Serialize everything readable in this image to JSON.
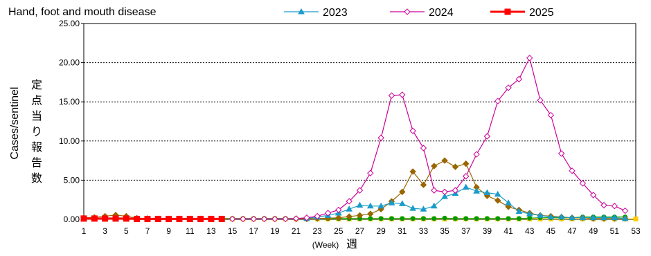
{
  "chart_data": {
    "type": "line",
    "title": "Hand, foot and mouth disease",
    "ylabel": "Cases/sentinel",
    "ylabel_ja": "定点当り報告数",
    "xlabel_unit": "(Week)",
    "xlabel_ja": "週",
    "ylim": [
      0,
      25
    ],
    "yticks": [
      "0.00",
      "5.00",
      "10.00",
      "15.00",
      "20.00",
      "25.00"
    ],
    "xlim": [
      1,
      53
    ],
    "xticks": [
      1,
      3,
      5,
      7,
      9,
      11,
      13,
      15,
      17,
      19,
      21,
      23,
      25,
      27,
      29,
      31,
      33,
      35,
      37,
      39,
      41,
      43,
      45,
      47,
      49,
      51,
      53
    ],
    "grid": "horizontal-dotted",
    "legend_position": "top",
    "series": [
      {
        "name": "",
        "color": "#ffcc00",
        "marker": "square",
        "in_legend": false,
        "x": [
          1,
          2,
          3,
          4,
          5,
          6,
          7,
          8,
          9,
          10,
          11,
          12,
          13,
          14,
          15,
          16,
          17,
          18,
          19,
          20,
          21,
          22,
          23,
          24,
          25,
          26,
          27,
          28,
          29,
          30,
          31,
          32,
          33,
          34,
          35,
          36,
          37,
          38,
          39,
          40,
          41,
          42,
          43,
          44,
          45,
          46,
          47,
          48,
          49,
          50,
          51,
          52,
          53
        ],
        "y": [
          0.05,
          0.05,
          0.05,
          0.05,
          0.05,
          0.05,
          0.05,
          0.05,
          0.05,
          0.05,
          0.05,
          0.05,
          0.05,
          0.05,
          0.05,
          0.05,
          0.05,
          0.05,
          0.05,
          0.05,
          0.05,
          0.05,
          0.05,
          0.05,
          0.05,
          0.05,
          0.05,
          0.05,
          0.05,
          0.05,
          0.05,
          0.05,
          0.05,
          0.05,
          0.05,
          0.05,
          0.05,
          0.05,
          0.05,
          0.05,
          0.05,
          0.05,
          0.05,
          0.05,
          0.05,
          0.05,
          0.05,
          0.05,
          0.05,
          0.05,
          0.05,
          0.05,
          0.05
        ]
      },
      {
        "name": "",
        "color": "#009900",
        "marker": "circle",
        "in_legend": false,
        "x": [
          1,
          2,
          3,
          4,
          5,
          6,
          7,
          8,
          9,
          10,
          11,
          12,
          13,
          14,
          15,
          16,
          17,
          18,
          19,
          20,
          21,
          22,
          23,
          24,
          25,
          26,
          27,
          28,
          29,
          30,
          31,
          32,
          33,
          34,
          35,
          36,
          37,
          38,
          39,
          40,
          41,
          42,
          43,
          44,
          45,
          46,
          47,
          48,
          49,
          50,
          51,
          52
        ],
        "y": [
          0.1,
          0.1,
          0.1,
          0.1,
          0.1,
          0.1,
          0.1,
          0.1,
          0.1,
          0.1,
          0.1,
          0.1,
          0.1,
          0.1,
          0.1,
          0.1,
          0.1,
          0.1,
          0.1,
          0.1,
          0.1,
          0.1,
          0.1,
          0.1,
          0.1,
          0.1,
          0.1,
          0.1,
          0.1,
          0.1,
          0.1,
          0.1,
          0.1,
          0.1,
          0.15,
          0.1,
          0.1,
          0.1,
          0.1,
          0.1,
          0.1,
          0.1,
          0.15,
          0.2,
          0.2,
          0.2,
          0.2,
          0.3,
          0.3,
          0.3,
          0.3,
          0.3
        ]
      },
      {
        "name": "",
        "color": "#996600",
        "marker": "diamond",
        "in_legend": false,
        "x": [
          1,
          2,
          3,
          4,
          5,
          6,
          7,
          8,
          9,
          10,
          11,
          12,
          13,
          14,
          15,
          16,
          17,
          18,
          19,
          20,
          21,
          22,
          23,
          24,
          25,
          26,
          27,
          28,
          29,
          30,
          31,
          32,
          33,
          34,
          35,
          36,
          37,
          38,
          39,
          40,
          41,
          42,
          43,
          44,
          45,
          46,
          47,
          48,
          49,
          50,
          51,
          52
        ],
        "y": [
          0.2,
          0.25,
          0.4,
          0.55,
          0.4,
          0.15,
          0.1,
          0.05,
          0.05,
          0.05,
          0.05,
          0.05,
          0.05,
          0.05,
          0.05,
          0.05,
          0.05,
          0.05,
          0.05,
          0.05,
          0.05,
          0.05,
          0.1,
          0.15,
          0.2,
          0.35,
          0.5,
          0.7,
          1.3,
          2.3,
          3.5,
          6.1,
          4.4,
          6.8,
          7.5,
          6.7,
          7.1,
          4.1,
          3.0,
          2.4,
          1.6,
          1.2,
          0.8,
          0.5,
          0.4,
          0.3,
          0.2,
          0.2,
          0.1,
          0.1,
          0.1,
          0.1
        ]
      },
      {
        "name": "2023",
        "color": "#1a9bc9",
        "marker": "triangle",
        "in_legend": true,
        "x": [
          22,
          23,
          24,
          25,
          26,
          27,
          28,
          29,
          30,
          31,
          32,
          33,
          34,
          35,
          36,
          37,
          38,
          39,
          40,
          41,
          42,
          43,
          44,
          45,
          46,
          47,
          48,
          49,
          50,
          51,
          52
        ],
        "y": [
          0.1,
          0.3,
          0.5,
          0.8,
          1.3,
          1.8,
          1.7,
          1.7,
          2.1,
          2.0,
          1.4,
          1.3,
          1.7,
          2.9,
          3.3,
          4.1,
          3.6,
          3.4,
          3.2,
          2.1,
          1.0,
          0.7,
          0.5,
          0.3,
          0.3,
          0.2,
          0.2,
          0.2,
          0.2,
          0.2,
          0.1
        ]
      },
      {
        "name": "2024",
        "color": "#cc0099",
        "marker": "diamond-open",
        "in_legend": true,
        "x": [
          15,
          16,
          17,
          18,
          19,
          20,
          21,
          22,
          23,
          24,
          25,
          26,
          27,
          28,
          29,
          30,
          31,
          32,
          33,
          34,
          35,
          36,
          37,
          38,
          39,
          40,
          41,
          42,
          43,
          44,
          45,
          46,
          47,
          48,
          49,
          50,
          51,
          52
        ],
        "y": [
          0.05,
          0.05,
          0.05,
          0.05,
          0.05,
          0.05,
          0.1,
          0.2,
          0.4,
          0.8,
          1.2,
          2.3,
          3.7,
          5.9,
          10.4,
          15.8,
          15.9,
          11.3,
          9.1,
          3.7,
          3.5,
          3.7,
          5.5,
          8.3,
          10.6,
          15.1,
          16.8,
          17.9,
          20.6,
          15.2,
          13.3,
          8.4,
          6.2,
          4.6,
          3.1,
          1.8,
          1.7,
          1.1
        ]
      },
      {
        "name": "2025",
        "color": "#ff0000",
        "marker": "square",
        "in_legend": true,
        "x": [
          1,
          2,
          3,
          4,
          5,
          6,
          7,
          8,
          9,
          10,
          11,
          12,
          13,
          14
        ],
        "y": [
          0.1,
          0.1,
          0.1,
          0.1,
          0.1,
          0.05,
          0.05,
          0.05,
          0.05,
          0.05,
          0.05,
          0.05,
          0.05,
          0.05
        ]
      }
    ]
  }
}
